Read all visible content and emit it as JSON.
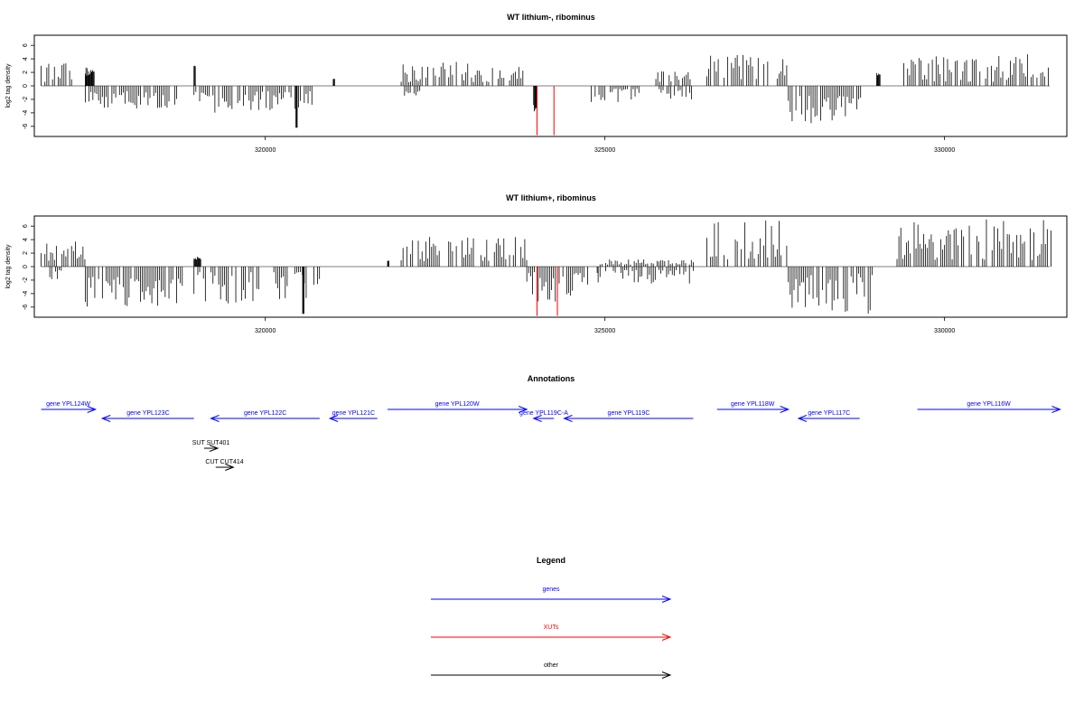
{
  "chart_data": [
    {
      "type": "bar",
      "title": "WT lithium-, ribominus",
      "xlabel": "",
      "ylabel": "log2 tag density",
      "xlim": [
        316600,
        331800
      ],
      "ylim": [
        -7.5,
        7.5
      ],
      "x_ticks": [
        320000,
        325000,
        330000
      ],
      "x_tick_labels": [
        "320000",
        "325000",
        "330000"
      ],
      "y_ticks": [
        6,
        4,
        2,
        0,
        -2,
        -4,
        -6
      ],
      "y_tick_labels": [
        "6",
        "4",
        "2",
        "0",
        "-2",
        "-4",
        "-6"
      ],
      "colors": {
        "default": "#000000",
        "highlight": "#ff0000"
      },
      "segments": [
        {
          "x0": 316700,
          "x1": 317150,
          "sign": 1,
          "min": 0.6,
          "max": 3.6
        },
        {
          "x0": 317350,
          "x1": 317480,
          "sign": 1,
          "min": 1.5,
          "max": 2.8
        },
        {
          "x0": 317350,
          "x1": 318700,
          "sign": -1,
          "min": 0.8,
          "max": 3.6
        },
        {
          "x0": 318950,
          "x1": 318970,
          "sign": 1,
          "min": 2.9,
          "max": 3.0
        },
        {
          "x0": 318950,
          "x1": 320700,
          "sign": -1,
          "min": 0.8,
          "max": 4.0
        },
        {
          "x0": 320450,
          "x1": 320470,
          "sign": -1,
          "min": 6.2,
          "max": 6.2
        },
        {
          "x0": 321000,
          "x1": 321020,
          "sign": 1,
          "min": 1.0,
          "max": 1.1
        },
        {
          "x0": 322000,
          "x1": 323800,
          "sign": 1,
          "min": 0.5,
          "max": 3.8
        },
        {
          "x0": 322050,
          "x1": 322300,
          "sign": -1,
          "min": 0.6,
          "max": 1.5
        },
        {
          "x0": 323950,
          "x1": 324000,
          "sign": -1,
          "min": 2.5,
          "max": 3.8
        },
        {
          "x0": 324800,
          "x1": 325500,
          "sign": -1,
          "min": 0.4,
          "max": 2.5
        },
        {
          "x0": 325750,
          "x1": 326300,
          "sign": 1,
          "min": 0.5,
          "max": 2.2
        },
        {
          "x0": 325800,
          "x1": 326300,
          "sign": -1,
          "min": 0.4,
          "max": 2.2
        },
        {
          "x0": 326500,
          "x1": 327700,
          "sign": 1,
          "min": 0.8,
          "max": 5.0
        },
        {
          "x0": 327700,
          "x1": 328800,
          "sign": -1,
          "min": 1.5,
          "max": 5.6
        },
        {
          "x0": 329000,
          "x1": 329050,
          "sign": 1,
          "min": 1.5,
          "max": 2.0
        },
        {
          "x0": 329400,
          "x1": 331550,
          "sign": 1,
          "min": 0.6,
          "max": 4.8
        }
      ],
      "highlight_bars": [
        {
          "x": 324000,
          "value": -7.3
        },
        {
          "x": 324250,
          "value": -7.3
        }
      ]
    },
    {
      "type": "bar",
      "title": "WT lithium+, ribominus",
      "xlabel": "",
      "ylabel": "log2 tag density",
      "xlim": [
        316600,
        331800
      ],
      "ylim": [
        -7.5,
        7.5
      ],
      "x_ticks": [
        320000,
        325000,
        330000
      ],
      "x_tick_labels": [
        "320000",
        "325000",
        "330000"
      ],
      "y_ticks": [
        6,
        4,
        2,
        0,
        -2,
        -4,
        -6
      ],
      "y_tick_labels": [
        "6",
        "4",
        "2",
        "0",
        "-2",
        "-4",
        "-6"
      ],
      "colors": {
        "default": "#000000",
        "highlight": "#ff0000"
      },
      "segments": [
        {
          "x0": 316700,
          "x1": 317350,
          "sign": 1,
          "min": 0.8,
          "max": 3.9
        },
        {
          "x0": 316800,
          "x1": 317000,
          "sign": -1,
          "min": 0.5,
          "max": 2.2
        },
        {
          "x0": 317350,
          "x1": 318800,
          "sign": -1,
          "min": 1.5,
          "max": 6.0
        },
        {
          "x0": 318950,
          "x1": 319050,
          "sign": 1,
          "min": 0.8,
          "max": 1.5
        },
        {
          "x0": 318950,
          "x1": 320800,
          "sign": -1,
          "min": 0.8,
          "max": 5.5
        },
        {
          "x0": 320550,
          "x1": 320570,
          "sign": -1,
          "min": 7.0,
          "max": 7.0
        },
        {
          "x0": 321800,
          "x1": 321820,
          "sign": 1,
          "min": 0.8,
          "max": 0.9
        },
        {
          "x0": 322000,
          "x1": 323850,
          "sign": 1,
          "min": 0.8,
          "max": 4.4
        },
        {
          "x0": 323850,
          "x1": 324900,
          "sign": -1,
          "min": 0.8,
          "max": 5.5
        },
        {
          "x0": 324900,
          "x1": 326300,
          "sign": 1,
          "min": 0.3,
          "max": 1.2
        },
        {
          "x0": 324900,
          "x1": 326300,
          "sign": -1,
          "min": 0.5,
          "max": 2.5
        },
        {
          "x0": 326500,
          "x1": 327700,
          "sign": 1,
          "min": 1.0,
          "max": 7.0
        },
        {
          "x0": 327700,
          "x1": 329000,
          "sign": -1,
          "min": 1.0,
          "max": 7.0
        },
        {
          "x0": 329300,
          "x1": 331600,
          "sign": 1,
          "min": 1.0,
          "max": 7.0
        }
      ],
      "highlight_bars": [
        {
          "x": 324000,
          "value": -7.3
        },
        {
          "x": 324300,
          "value": -7.3
        }
      ]
    }
  ],
  "annotations": {
    "title": "Annotations",
    "genes": [
      {
        "label": "gene YPL124W",
        "start": 316700,
        "end": 317500,
        "strand": "+",
        "color": "#0000ff"
      },
      {
        "label": "gene YPL123C",
        "start": 317600,
        "end": 318950,
        "strand": "-",
        "color": "#0000ff"
      },
      {
        "label": "gene YPL122C",
        "start": 319200,
        "end": 320800,
        "strand": "-",
        "color": "#0000ff"
      },
      {
        "label": "gene YPL121C",
        "start": 320950,
        "end": 321650,
        "strand": "-",
        "color": "#0000ff"
      },
      {
        "label": "gene YPL120W",
        "start": 321800,
        "end": 323850,
        "strand": "+",
        "color": "#0000ff"
      },
      {
        "label": "gene YPL119C-A",
        "start": 323950,
        "end": 324250,
        "strand": "-",
        "color": "#0000ff"
      },
      {
        "label": "gene YPL119C",
        "start": 324400,
        "end": 326300,
        "strand": "-",
        "color": "#0000ff"
      },
      {
        "label": "gene YPL118W",
        "start": 326650,
        "end": 327700,
        "strand": "+",
        "color": "#0000ff"
      },
      {
        "label": "gene YPL117C",
        "start": 327850,
        "end": 328750,
        "strand": "-",
        "color": "#0000ff"
      },
      {
        "label": "gene YPL116W",
        "start": 329600,
        "end": 331700,
        "strand": "+",
        "color": "#0000ff"
      }
    ],
    "others": [
      {
        "label": "SUT SUT401",
        "start": 319100,
        "end": 319300,
        "strand": "+",
        "color": "#000000"
      },
      {
        "label": "CUT CUT414",
        "start": 319270,
        "end": 319530,
        "strand": "+",
        "color": "#000000"
      }
    ]
  },
  "legend": {
    "title": "Legend",
    "entries": [
      {
        "label": "genes",
        "color": "#0000ff"
      },
      {
        "label": "XUTs",
        "color": "#ff0000"
      },
      {
        "label": "other",
        "color": "#000000"
      }
    ]
  }
}
